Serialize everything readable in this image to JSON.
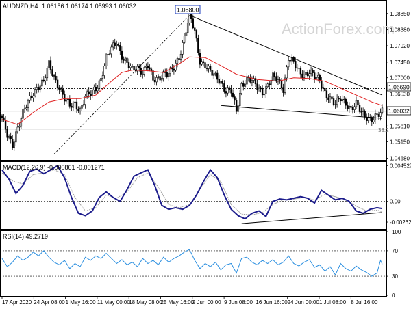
{
  "chart_data": [
    {
      "type": "candlestick",
      "panel": "price",
      "symbol_timeframe": "AUDNZD,H4",
      "ohlc_readout": "1.06156 1.06174 1.05993 1.06032",
      "watermark": "ActionForex.com",
      "ylim": [
        1.0465,
        1.092
      ],
      "y_ticks": [
        "1.08850",
        "1.08380",
        "1.07920",
        "1.07450",
        "1.07000",
        "1.06530",
        "1.06080",
        "1.05610",
        "1.05150",
        "1.04680"
      ],
      "x_ticks": [
        "17 Apr 2020",
        "24 Apr 08:00",
        "1 May 16:00",
        "11 May 00:00",
        "18 May 08:00",
        "25 May 16:00",
        "2 Jun 00:00",
        "9 Jun 08:00",
        "16 Jun 16:00",
        "24 Jun 00:00",
        "1 Jul 08:00",
        "8 Jul 16:00"
      ],
      "annotations": {
        "peak_label": "1.08800",
        "resistance_label": "1.06690",
        "current_price_label": "1.06032",
        "fib_label": "38.2"
      },
      "close_path": [
        [
          0,
          1.0585
        ],
        [
          3,
          1.053
        ],
        [
          6,
          1.0505
        ],
        [
          9,
          1.056
        ],
        [
          12,
          1.06
        ],
        [
          15,
          1.0625
        ],
        [
          18,
          1.0655
        ],
        [
          21,
          1.068
        ],
        [
          24,
          1.069
        ],
        [
          27,
          1.0735
        ],
        [
          30,
          1.07
        ],
        [
          33,
          1.0675
        ],
        [
          36,
          1.064
        ],
        [
          39,
          1.0615
        ],
        [
          42,
          1.0625
        ],
        [
          45,
          1.061
        ],
        [
          48,
          1.0645
        ],
        [
          51,
          1.065
        ],
        [
          54,
          1.067
        ],
        [
          57,
          1.07
        ],
        [
          60,
          1.0755
        ],
        [
          63,
          1.078
        ],
        [
          66,
          1.0805
        ],
        [
          69,
          1.0765
        ],
        [
          72,
          1.074
        ],
        [
          75,
          1.072
        ],
        [
          78,
          1.073
        ],
        [
          81,
          1.072
        ],
        [
          84,
          1.0735
        ],
        [
          87,
          1.069
        ],
        [
          90,
          1.07
        ],
        [
          93,
          1.0715
        ],
        [
          96,
          1.071
        ],
        [
          99,
          1.0725
        ],
        [
          102,
          1.076
        ],
        [
          105,
          1.082
        ],
        [
          108,
          1.088
        ],
        [
          111,
          1.083
        ],
        [
          114,
          1.075
        ],
        [
          117,
          1.074
        ],
        [
          120,
          1.0715
        ],
        [
          123,
          1.07
        ],
        [
          126,
          1.069
        ],
        [
          129,
          1.0665
        ],
        [
          132,
          1.066
        ],
        [
          135,
          1.06
        ],
        [
          138,
          1.068
        ],
        [
          141,
          1.07
        ],
        [
          144,
          1.069
        ],
        [
          147,
          1.067
        ],
        [
          150,
          1.066
        ],
        [
          153,
          1.068
        ],
        [
          156,
          1.07
        ],
        [
          159,
          1.069
        ],
        [
          162,
          1.067
        ],
        [
          165,
          1.076
        ],
        [
          168,
          1.074
        ],
        [
          171,
          1.0715
        ],
        [
          174,
          1.071
        ],
        [
          177,
          1.072
        ],
        [
          180,
          1.07
        ],
        [
          183,
          1.069
        ],
        [
          186,
          1.066
        ],
        [
          189,
          1.064
        ],
        [
          192,
          1.062
        ],
        [
          195,
          1.064
        ],
        [
          198,
          1.063
        ],
        [
          201,
          1.061
        ],
        [
          204,
          1.062
        ],
        [
          207,
          1.06
        ],
        [
          210,
          1.059
        ],
        [
          213,
          1.058
        ],
        [
          216,
          1.0585
        ],
        [
          219,
          1.0603
        ]
      ],
      "candles_per_segment": 3,
      "moving_average": [
        [
          0,
          1.058
        ],
        [
          9,
          1.0565
        ],
        [
          18,
          1.06
        ],
        [
          27,
          1.063
        ],
        [
          36,
          1.064
        ],
        [
          45,
          1.064
        ],
        [
          54,
          1.065
        ],
        [
          63,
          1.069
        ],
        [
          69,
          1.0715
        ],
        [
          75,
          1.0722
        ],
        [
          84,
          1.072
        ],
        [
          93,
          1.0715
        ],
        [
          102,
          1.074
        ],
        [
          108,
          1.076
        ],
        [
          117,
          1.0758
        ],
        [
          126,
          1.0735
        ],
        [
          135,
          1.071
        ],
        [
          147,
          1.0695
        ],
        [
          159,
          1.069
        ],
        [
          168,
          1.07
        ],
        [
          177,
          1.0698
        ],
        [
          186,
          1.069
        ],
        [
          195,
          1.067
        ],
        [
          204,
          1.065
        ],
        [
          213,
          1.063
        ],
        [
          219,
          1.062
        ]
      ],
      "resistance_trendline": [
        [
          108,
          1.088
        ],
        [
          219,
          1.065
        ]
      ],
      "support_trendline": [
        [
          126,
          1.062
        ],
        [
          219,
          1.0583
        ]
      ],
      "rising_trendline": [
        [
          30,
          1.048
        ],
        [
          108,
          1.088
        ]
      ],
      "x_count": 220
    },
    {
      "type": "line",
      "panel": "macd",
      "label": "MACD(12,26,9) -0.000861 -0.001271",
      "ylim": [
        -0.0034,
        0.0049
      ],
      "y_ticks": [
        "0.004527",
        "0.00",
        "-0.002624"
      ],
      "series": [
        {
          "values": [
            [
              0,
              0.004
            ],
            [
              4,
              0.0028
            ],
            [
              8,
              0.001
            ],
            [
              12,
              0.002
            ],
            [
              16,
              0.0038
            ],
            [
              20,
              0.0041
            ],
            [
              24,
              0.0035
            ],
            [
              28,
              0.004
            ],
            [
              32,
              0.0045
            ],
            [
              36,
              0.003
            ],
            [
              40,
              0.0005
            ],
            [
              44,
              -0.0015
            ],
            [
              48,
              -0.0018
            ],
            [
              52,
              -0.0012
            ],
            [
              56,
              0.0005
            ],
            [
              60,
              0.0012
            ],
            [
              64,
              0.0005
            ],
            [
              68,
              0.0
            ],
            [
              72,
              0.0015
            ],
            [
              76,
              0.0032
            ],
            [
              80,
              0.0036
            ],
            [
              84,
              0.004
            ],
            [
              88,
              0.002
            ],
            [
              92,
              -0.0005
            ],
            [
              96,
              -0.001
            ],
            [
              100,
              -0.0008
            ],
            [
              104,
              -0.001
            ],
            [
              108,
              -0.0005
            ],
            [
              112,
              0.0008
            ],
            [
              116,
              0.0025
            ],
            [
              120,
              0.004
            ],
            [
              124,
              0.003
            ],
            [
              128,
              0.0008
            ],
            [
              132,
              -0.001
            ],
            [
              136,
              -0.0018
            ],
            [
              140,
              -0.0022
            ],
            [
              144,
              -0.0015
            ],
            [
              148,
              -0.0012
            ],
            [
              152,
              -0.0019
            ],
            [
              156,
              0.0
            ],
            [
              160,
              0.0003
            ],
            [
              164,
              0.0002
            ],
            [
              168,
              0.0004
            ],
            [
              172,
              0.0006
            ],
            [
              176,
              0.0004
            ],
            [
              180,
              -0.0002
            ],
            [
              184,
              0.0014
            ],
            [
              188,
              0.0008
            ],
            [
              192,
              0.0002
            ],
            [
              196,
              0.0004
            ],
            [
              200,
              0.0
            ],
            [
              204,
              -0.0012
            ],
            [
              208,
              -0.0015
            ],
            [
              212,
              -0.001
            ],
            [
              216,
              -0.0008
            ],
            [
              219,
              -0.0009
            ]
          ]
        },
        {
          "values": [
            [
              0,
              0.0036
            ],
            [
              6,
              0.0026
            ],
            [
              12,
              0.0022
            ],
            [
              18,
              0.0034
            ],
            [
              24,
              0.0036
            ],
            [
              30,
              0.004
            ],
            [
              36,
              0.0034
            ],
            [
              42,
              0.0005
            ],
            [
              48,
              -0.0012
            ],
            [
              54,
              -0.0008
            ],
            [
              60,
              0.0008
            ],
            [
              66,
              0.0004
            ],
            [
              72,
              0.0012
            ],
            [
              78,
              0.003
            ],
            [
              84,
              0.0036
            ],
            [
              90,
              0.0018
            ],
            [
              96,
              -0.0004
            ],
            [
              102,
              -0.0008
            ],
            [
              108,
              -0.0004
            ],
            [
              114,
              0.0015
            ],
            [
              120,
              0.0034
            ],
            [
              126,
              0.0025
            ],
            [
              132,
              -0.0004
            ],
            [
              138,
              -0.0016
            ],
            [
              144,
              -0.0017
            ],
            [
              150,
              -0.0014
            ],
            [
              156,
              -0.0004
            ],
            [
              162,
              0.0002
            ],
            [
              168,
              0.0003
            ],
            [
              174,
              0.0005
            ],
            [
              180,
              0.0002
            ],
            [
              186,
              0.0009
            ],
            [
              192,
              0.0006
            ],
            [
              198,
              0.0002
            ],
            [
              204,
              -0.0006
            ],
            [
              210,
              -0.0012
            ],
            [
              216,
              -0.0011
            ],
            [
              219,
              -0.0013
            ]
          ]
        }
      ],
      "trendline": [
        [
          138,
          -0.0028
        ],
        [
          219,
          -0.0014
        ]
      ]
    },
    {
      "type": "line",
      "panel": "rsi",
      "label": "RSI(14) 49.2719",
      "ylim": [
        0,
        100
      ],
      "y_ticks": [
        "100",
        "70",
        "30",
        "0"
      ],
      "levels": [
        70,
        30
      ],
      "series": [
        {
          "values": [
            [
              0,
              58
            ],
            [
              3,
              45
            ],
            [
              6,
              52
            ],
            [
              9,
              62
            ],
            [
              12,
              55
            ],
            [
              15,
              60
            ],
            [
              18,
              68
            ],
            [
              21,
              62
            ],
            [
              24,
              70
            ],
            [
              27,
              60
            ],
            [
              30,
              52
            ],
            [
              33,
              48
            ],
            [
              36,
              55
            ],
            [
              39,
              42
            ],
            [
              42,
              50
            ],
            [
              45,
              45
            ],
            [
              48,
              60
            ],
            [
              51,
              55
            ],
            [
              54,
              62
            ],
            [
              57,
              58
            ],
            [
              60,
              66
            ],
            [
              63,
              58
            ],
            [
              66,
              50
            ],
            [
              69,
              56
            ],
            [
              72,
              48
            ],
            [
              75,
              52
            ],
            [
              78,
              45
            ],
            [
              81,
              58
            ],
            [
              84,
              50
            ],
            [
              87,
              55
            ],
            [
              90,
              48
            ],
            [
              93,
              60
            ],
            [
              96,
              52
            ],
            [
              99,
              58
            ],
            [
              102,
              62
            ],
            [
              105,
              68
            ],
            [
              108,
              72
            ],
            [
              111,
              55
            ],
            [
              114,
              42
            ],
            [
              117,
              50
            ],
            [
              120,
              45
            ],
            [
              123,
              52
            ],
            [
              126,
              40
            ],
            [
              129,
              48
            ],
            [
              132,
              50
            ],
            [
              135,
              35
            ],
            [
              138,
              58
            ],
            [
              141,
              60
            ],
            [
              144,
              52
            ],
            [
              147,
              48
            ],
            [
              150,
              55
            ],
            [
              153,
              50
            ],
            [
              156,
              56
            ],
            [
              159,
              48
            ],
            [
              162,
              52
            ],
            [
              165,
              62
            ],
            [
              168,
              50
            ],
            [
              171,
              46
            ],
            [
              174,
              52
            ],
            [
              177,
              56
            ],
            [
              180,
              44
            ],
            [
              183,
              48
            ],
            [
              186,
              38
            ],
            [
              189,
              45
            ],
            [
              192,
              32
            ],
            [
              195,
              50
            ],
            [
              198,
              42
            ],
            [
              201,
              38
            ],
            [
              204,
              46
            ],
            [
              207,
              40
            ],
            [
              210,
              36
            ],
            [
              213,
              30
            ],
            [
              216,
              35
            ],
            [
              218,
              55
            ],
            [
              219,
              49
            ]
          ]
        }
      ]
    }
  ]
}
